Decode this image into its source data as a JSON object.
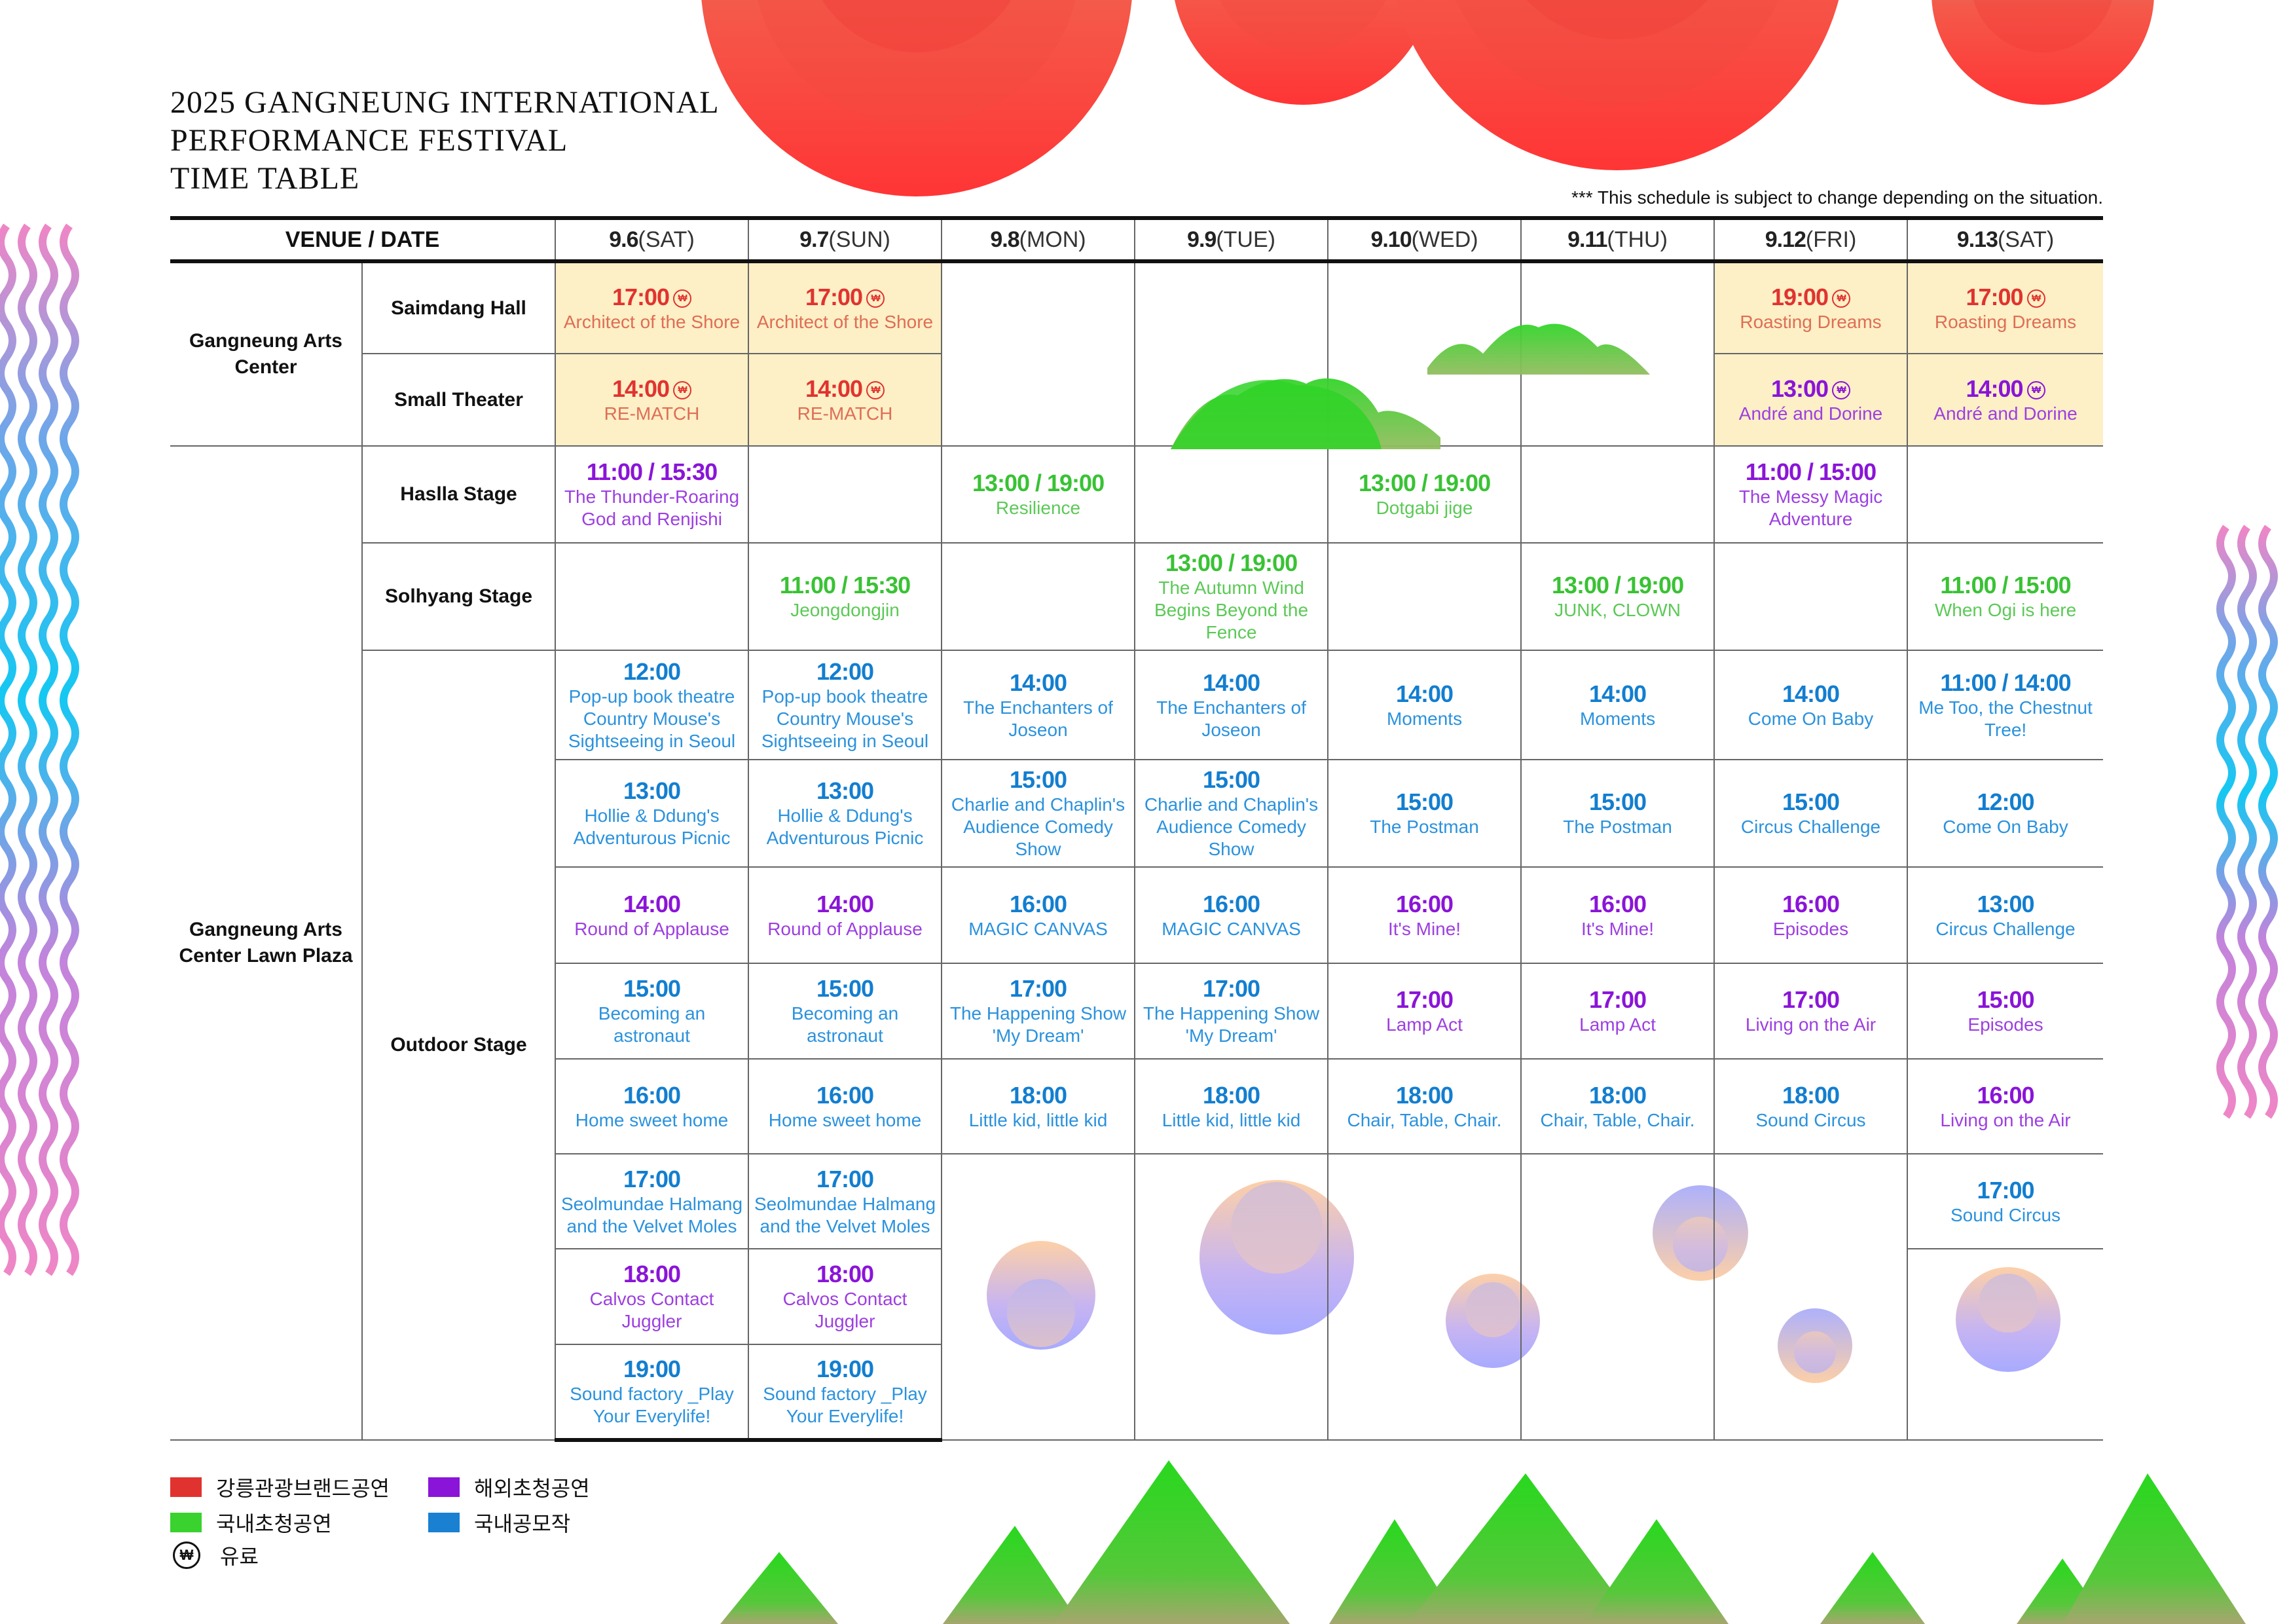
{
  "title": {
    "line1": "2025 GANGNEUNG INTERNATIONAL",
    "line2": "PERFORMANCE FESTIVAL",
    "line3": "TIME TABLE"
  },
  "notice": "*** This schedule is subject to change depending on the situation.",
  "header": {
    "venue": "VENUE",
    "sep": " / ",
    "date": "DATE",
    "days": [
      {
        "date": "9.6",
        "dow": "(SAT)"
      },
      {
        "date": "9.7",
        "dow": "(SUN)"
      },
      {
        "date": "9.8",
        "dow": "(MON)"
      },
      {
        "date": "9.9",
        "dow": "(TUE)"
      },
      {
        "date": "9.10",
        "dow": "(WED)"
      },
      {
        "date": "9.11",
        "dow": "(THU)"
      },
      {
        "date": "9.12",
        "dow": "(FRI)"
      },
      {
        "date": "9.13",
        "dow": "(SAT)"
      }
    ]
  },
  "venues": {
    "arts_center": "Gangneung Arts Center",
    "lawn_plaza": "Gangneung Arts Center Lawn Plaza",
    "saimdang": "Saimdang Hall",
    "small_theater": "Small Theater",
    "haslla": "Haslla Stage",
    "solhyang": "Solhyang Stage",
    "outdoor": "Outdoor Stage"
  },
  "paid_mark": "₩",
  "colors": {
    "brand": "#e0332f",
    "overseas": "#8a14d8",
    "domestic_invited": "#39c234",
    "domestic_open": "#127ed0",
    "paid_bg": "#fdefc6"
  },
  "schedule": {
    "saimdang": {
      "d1": {
        "time": "17:00",
        "name": "Architect of the Shore"
      },
      "d2": {
        "time": "17:00",
        "name": "Architect of the Shore"
      },
      "d7": {
        "time": "19:00",
        "name": "Roasting Dreams"
      },
      "d8": {
        "time": "17:00",
        "name": "Roasting Dreams"
      }
    },
    "small_theater": {
      "d1": {
        "time": "14:00",
        "name": "RE-MATCH"
      },
      "d2": {
        "time": "14:00",
        "name": "RE-MATCH"
      },
      "d7": {
        "time": "13:00",
        "name": "André and Dorine"
      },
      "d8": {
        "time": "14:00",
        "name": "André and Dorine"
      }
    },
    "haslla": {
      "d1": {
        "time": "11:00 / 15:30",
        "name": "The Thunder-Roaring God and Renjishi"
      },
      "d3": {
        "time": "13:00 / 19:00",
        "name": "Resilience"
      },
      "d5": {
        "time": "13:00 / 19:00",
        "name": "Dotgabi jige"
      },
      "d7": {
        "time": "11:00 / 15:00",
        "name": "The Messy Magic Adventure"
      }
    },
    "solhyang": {
      "d2": {
        "time": "11:00 / 15:30",
        "name": "Jeongdongjin"
      },
      "d4": {
        "time": "13:00 / 19:00",
        "name": "The Autumn Wind Begins Beyond the Fence"
      },
      "d6": {
        "time": "13:00 / 19:00",
        "name": "JUNK, CLOWN"
      },
      "d8": {
        "time": "11:00 / 15:00",
        "name": "When Ogi is here"
      }
    },
    "outdoor": {
      "d1": [
        {
          "time": "12:00",
          "name": "Pop-up book theatre Country Mouse's Sightseeing in Seoul"
        },
        {
          "time": "13:00",
          "name": "Hollie & Ddung's Adventurous Picnic"
        },
        {
          "time": "14:00",
          "name": "Round of Applause"
        },
        {
          "time": "15:00",
          "name": "Becoming an astronaut"
        },
        {
          "time": "16:00",
          "name": "Home sweet home"
        },
        {
          "time": "17:00",
          "name": "Seolmundae Halmang and the Velvet Moles"
        },
        {
          "time": "18:00",
          "name": "Calvos Contact Juggler"
        },
        {
          "time": "19:00",
          "name": "Sound factory _Play Your Everylife!"
        }
      ],
      "d2": [
        {
          "time": "12:00",
          "name": "Pop-up book theatre Country Mouse's Sightseeing in Seoul"
        },
        {
          "time": "13:00",
          "name": "Hollie & Ddung's Adventurous Picnic"
        },
        {
          "time": "14:00",
          "name": "Round of Applause"
        },
        {
          "time": "15:00",
          "name": "Becoming an astronaut"
        },
        {
          "time": "16:00",
          "name": "Home sweet home"
        },
        {
          "time": "17:00",
          "name": "Seolmundae Halmang and the Velvet Moles"
        },
        {
          "time": "18:00",
          "name": "Calvos Contact Juggler"
        },
        {
          "time": "19:00",
          "name": "Sound factory _Play Your Everylife!"
        }
      ],
      "d3": [
        {
          "time": "14:00",
          "name": "The Enchanters of Joseon"
        },
        {
          "time": "15:00",
          "name": "Charlie and Chaplin's Audience Comedy Show"
        },
        {
          "time": "16:00",
          "name": "MAGIC CANVAS"
        },
        {
          "time": "17:00",
          "name": "The Happening Show 'My Dream'"
        },
        {
          "time": "18:00",
          "name": "Little kid, little kid"
        }
      ],
      "d4": [
        {
          "time": "14:00",
          "name": "The Enchanters of Joseon"
        },
        {
          "time": "15:00",
          "name": "Charlie and Chaplin's Audience Comedy Show"
        },
        {
          "time": "16:00",
          "name": "MAGIC CANVAS"
        },
        {
          "time": "17:00",
          "name": "The Happening Show 'My Dream'"
        },
        {
          "time": "18:00",
          "name": "Little kid, little kid"
        }
      ],
      "d5": [
        {
          "time": "14:00",
          "name": "Moments"
        },
        {
          "time": "15:00",
          "name": "The Postman"
        },
        {
          "time": "16:00",
          "name": "It's Mine!"
        },
        {
          "time": "17:00",
          "name": "Lamp Act"
        },
        {
          "time": "18:00",
          "name": "Chair, Table, Chair."
        }
      ],
      "d6": [
        {
          "time": "14:00",
          "name": "Moments"
        },
        {
          "time": "15:00",
          "name": "The Postman"
        },
        {
          "time": "16:00",
          "name": "It's Mine!"
        },
        {
          "time": "17:00",
          "name": "Lamp Act"
        },
        {
          "time": "18:00",
          "name": "Chair, Table, Chair."
        }
      ],
      "d7": [
        {
          "time": "14:00",
          "name": "Come On Baby"
        },
        {
          "time": "15:00",
          "name": "Circus Challenge"
        },
        {
          "time": "16:00",
          "name": "Episodes"
        },
        {
          "time": "17:00",
          "name": "Living on the Air"
        },
        {
          "time": "18:00",
          "name": "Sound Circus"
        }
      ],
      "d8": [
        {
          "time": "11:00 / 14:00",
          "name": "Me Too, the Chestnut Tree!"
        },
        {
          "time": "12:00",
          "name": "Come On Baby"
        },
        {
          "time": "13:00",
          "name": "Circus Challenge"
        },
        {
          "time": "15:00",
          "name": "Episodes"
        },
        {
          "time": "16:00",
          "name": "Living on the Air"
        },
        {
          "time": "17:00",
          "name": "Sound Circus"
        }
      ]
    }
  },
  "legend": {
    "brand": "강릉관광브랜드공연",
    "overseas": "해외초청공연",
    "domestic_invited": "국내초청공연",
    "domestic_open": "국내공모작",
    "paid": "유료"
  }
}
